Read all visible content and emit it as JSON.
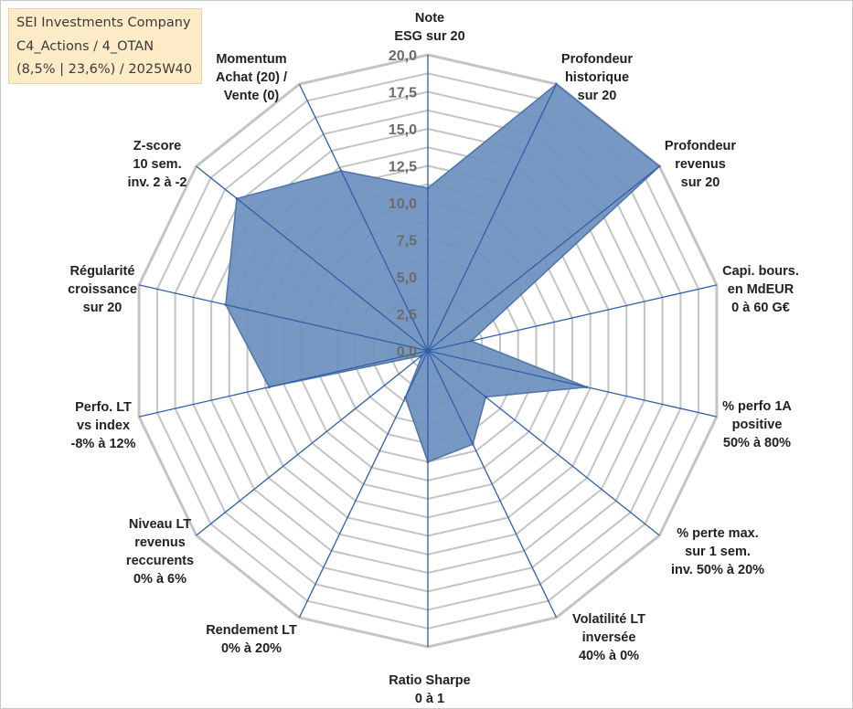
{
  "title_box": {
    "line1": "SEI Investments Company",
    "line2": "C4_Actions / 4_OTAN",
    "line3": "(8,5% | 23,6%) / 2025W40"
  },
  "colors": {
    "grid": "#c4c4c4",
    "spoke": "#2f5fa8",
    "fill": "#6b8fbd",
    "stroke": "#4f74aa",
    "title_bg": "#fdebc8"
  },
  "chart_data": {
    "type": "radar",
    "title": "SEI Investments Company",
    "rmin": 0,
    "rmax": 20,
    "tick_step": 2.5,
    "tick_labels": [
      "0,0",
      "2,5",
      "5,0",
      "7,5",
      "10,0",
      "12,5",
      "15,0",
      "17,5",
      "20,0"
    ],
    "axes": [
      [
        "Note",
        "ESG sur 20"
      ],
      [
        "Profondeur",
        "historique",
        "sur 20"
      ],
      [
        "Profondeur",
        "revenus",
        "sur 20"
      ],
      [
        "Capi. bours.",
        "en MdEUR",
        "0 à 60 G€"
      ],
      [
        "% perfo 1A",
        "positive",
        "50% à 80%"
      ],
      [
        "% perte max.",
        "sur 1 sem.",
        "inv. 50% à 20%"
      ],
      [
        "Volatilité LT",
        "inversée",
        "40% à 0%"
      ],
      [
        "Ratio Sharpe",
        "0 à 1"
      ],
      [
        "Rendement LT",
        "0% à 20%"
      ],
      [
        "Niveau LT",
        "revenus",
        "reccurents",
        "0% à 6%"
      ],
      [
        "Perfo. LT",
        "vs index",
        "-8% à 12%"
      ],
      [
        "Régularité",
        "croissance",
        "sur 20"
      ],
      [
        "Z-score",
        "10 sem.",
        "inv. 2 à -2"
      ],
      [
        "Momentum",
        "Achat (20) /",
        "Vente (0)"
      ]
    ],
    "series": [
      {
        "name": "SEI Investments Company",
        "values": [
          11,
          20,
          20,
          3,
          11,
          5,
          7,
          7.5,
          3.5,
          0.5,
          11,
          14,
          16.5,
          13.5
        ]
      }
    ]
  }
}
